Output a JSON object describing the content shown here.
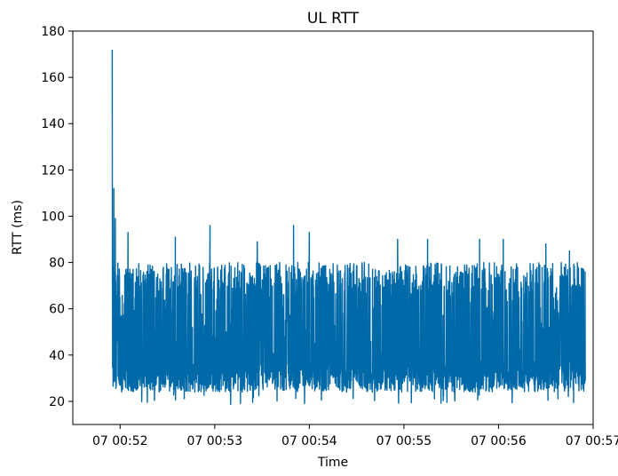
{
  "chart_data": {
    "type": "line",
    "title": "UL RTT",
    "xlabel": "Time",
    "ylabel": "RTT (ms)",
    "color": "#0069a8",
    "grid": false,
    "x_start": "07 00:51:55",
    "x_end": "07 00:56:55",
    "xlim": [
      "07 00:51:30",
      "07 00:57:00"
    ],
    "ylim": [
      10,
      180
    ],
    "x_ticks": [
      "07 00:52",
      "07 00:53",
      "07 00:54",
      "07 00:55",
      "07 00:56",
      "07 00:57"
    ],
    "y_ticks": [
      20,
      40,
      60,
      80,
      100,
      120,
      140,
      160,
      180
    ],
    "series": [
      {
        "name": "",
        "peaks": [
          {
            "x": "07 00:51:55",
            "y": 172
          },
          {
            "x": "07 00:51:56",
            "y": 112
          },
          {
            "x": "07 00:51:57",
            "y": 99
          },
          {
            "x": "07 00:52:05",
            "y": 93
          },
          {
            "x": "07 00:52:35",
            "y": 91
          },
          {
            "x": "07 00:52:57",
            "y": 96
          },
          {
            "x": "07 00:53:27",
            "y": 89
          },
          {
            "x": "07 00:53:50",
            "y": 96
          },
          {
            "x": "07 00:54:00",
            "y": 93
          },
          {
            "x": "07 00:54:56",
            "y": 90
          },
          {
            "x": "07 00:55:15",
            "y": 90
          },
          {
            "x": "07 00:55:48",
            "y": 90
          },
          {
            "x": "07 00:56:03",
            "y": 90
          },
          {
            "x": "07 00:56:30",
            "y": 88
          },
          {
            "x": "07 00:56:45",
            "y": 85
          }
        ],
        "typical_max": 80,
        "typical_min": 24,
        "min": 18,
        "mean": 45
      }
    ]
  }
}
